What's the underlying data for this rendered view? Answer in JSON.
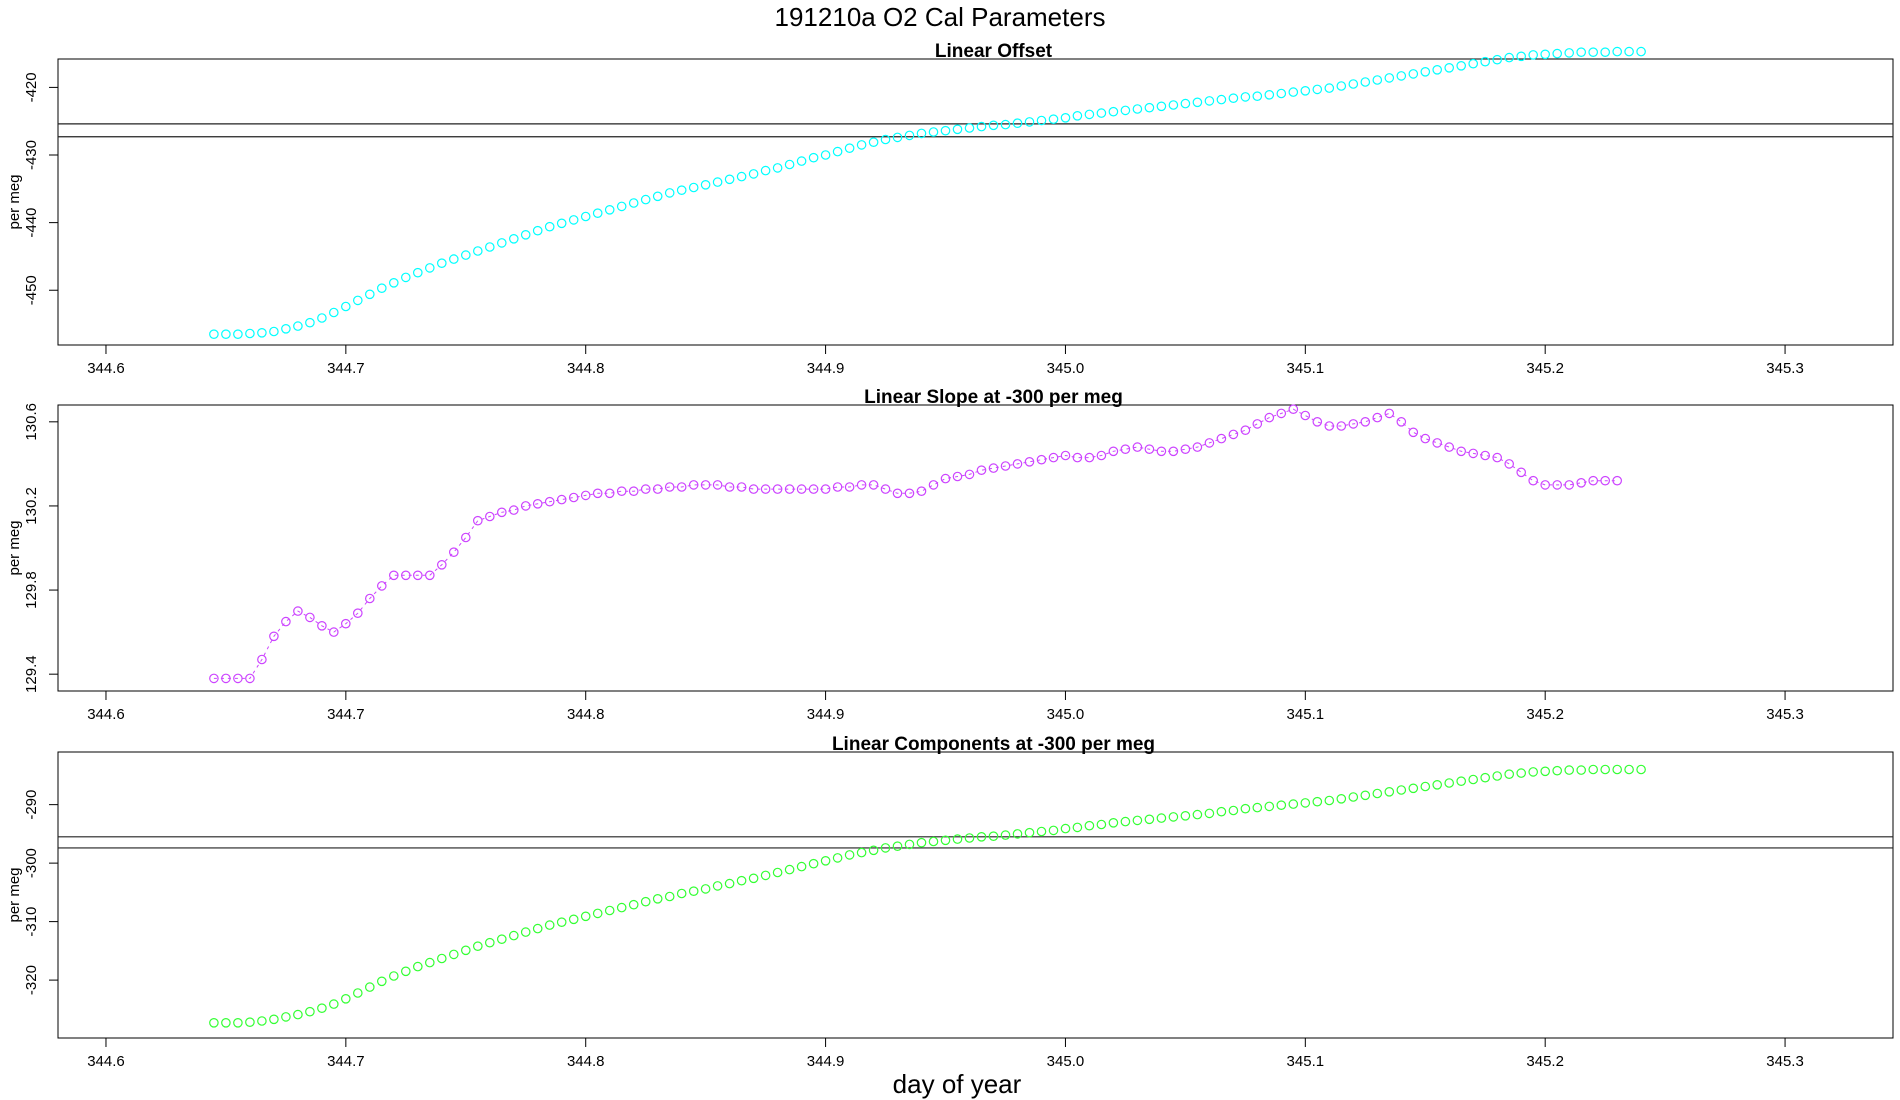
{
  "figure": {
    "title": "191210a   O2 Cal Parameters",
    "xlabel": "day of year"
  },
  "chart_data": [
    {
      "type": "scatter",
      "title": "Linear Offset",
      "xlabel": "",
      "ylabel": "per meg",
      "xlim": [
        344.58,
        345.345
      ],
      "ylim": [
        -458.1,
        -415.8
      ],
      "xticks": [
        "344.6",
        "344.7",
        "344.8",
        "344.9",
        "345.0",
        "345.1",
        "345.2",
        "345.3"
      ],
      "yticks": [
        "-420",
        "-430",
        "-440",
        "-450"
      ],
      "hlines": [
        -425.4,
        -427.3
      ],
      "marker": "open-circle",
      "connected": false,
      "color": "#00ffff",
      "x_start": 344.645,
      "x_step": 0.005,
      "values": [
        -456.5,
        -456.5,
        -456.5,
        -456.4,
        -456.3,
        -456.1,
        -455.7,
        -455.3,
        -454.8,
        -454.1,
        -453.3,
        -452.4,
        -451.5,
        -450.6,
        -449.7,
        -448.9,
        -448.1,
        -447.4,
        -446.7,
        -446.0,
        -445.4,
        -444.8,
        -444.2,
        -443.6,
        -443.0,
        -442.4,
        -441.8,
        -441.2,
        -440.6,
        -440.1,
        -439.6,
        -439.1,
        -438.6,
        -438.1,
        -437.6,
        -437.1,
        -436.6,
        -436.1,
        -435.6,
        -435.2,
        -434.8,
        -434.4,
        -434.0,
        -433.6,
        -433.2,
        -432.8,
        -432.3,
        -431.9,
        -431.4,
        -430.9,
        -430.4,
        -430.0,
        -429.5,
        -429.0,
        -428.5,
        -428.1,
        -427.7,
        -427.4,
        -427.1,
        -426.8,
        -426.6,
        -426.4,
        -426.2,
        -426.0,
        -425.8,
        -425.6,
        -425.5,
        -425.3,
        -425.1,
        -424.9,
        -424.7,
        -424.5,
        -424.2,
        -424.0,
        -423.8,
        -423.6,
        -423.4,
        -423.2,
        -423.0,
        -422.8,
        -422.6,
        -422.4,
        -422.2,
        -422.0,
        -421.8,
        -421.6,
        -421.4,
        -421.3,
        -421.1,
        -420.9,
        -420.7,
        -420.5,
        -420.3,
        -420.1,
        -419.8,
        -419.5,
        -419.2,
        -418.9,
        -418.6,
        -418.3,
        -418.0,
        -417.7,
        -417.4,
        -417.1,
        -416.8,
        -416.5,
        -416.2,
        -415.9,
        -415.6,
        -415.4,
        -415.2,
        -415.1,
        -415.0,
        -414.9,
        -414.8,
        -414.8,
        -414.8,
        -414.7,
        -414.7,
        -414.7
      ]
    },
    {
      "type": "scatter",
      "title": "Linear Slope at -300 per meg",
      "xlabel": "",
      "ylabel": "per meg",
      "xlim": [
        344.58,
        345.345
      ],
      "ylim": [
        129.32,
        130.68
      ],
      "xticks": [
        "344.6",
        "344.7",
        "344.8",
        "344.9",
        "345.0",
        "345.1",
        "345.2",
        "345.3"
      ],
      "yticks": [
        "129.4",
        "129.8",
        "130.2",
        "130.6"
      ],
      "hlines": [],
      "marker": "open-circle",
      "connected": true,
      "color": "#cc44ff",
      "x_start": 344.645,
      "x_step": 0.005,
      "values": [
        129.38,
        129.38,
        129.38,
        129.38,
        129.47,
        129.58,
        129.65,
        129.7,
        129.67,
        129.63,
        129.6,
        129.64,
        129.69,
        129.76,
        129.82,
        129.87,
        129.87,
        129.87,
        129.87,
        129.92,
        129.98,
        130.05,
        130.13,
        130.15,
        130.17,
        130.18,
        130.2,
        130.21,
        130.22,
        130.23,
        130.24,
        130.25,
        130.26,
        130.26,
        130.27,
        130.27,
        130.28,
        130.28,
        130.29,
        130.29,
        130.3,
        130.3,
        130.3,
        130.29,
        130.29,
        130.28,
        130.28,
        130.28,
        130.28,
        130.28,
        130.28,
        130.28,
        130.29,
        130.29,
        130.3,
        130.3,
        130.28,
        130.26,
        130.26,
        130.27,
        130.3,
        130.33,
        130.34,
        130.35,
        130.37,
        130.38,
        130.39,
        130.4,
        130.41,
        130.42,
        130.43,
        130.44,
        130.43,
        130.43,
        130.44,
        130.46,
        130.47,
        130.48,
        130.47,
        130.46,
        130.46,
        130.47,
        130.48,
        130.5,
        130.52,
        130.54,
        130.56,
        130.59,
        130.62,
        130.64,
        130.66,
        130.63,
        130.6,
        130.58,
        130.58,
        130.59,
        130.6,
        130.62,
        130.64,
        130.6,
        130.55,
        130.52,
        130.5,
        130.48,
        130.46,
        130.45,
        130.44,
        130.43,
        130.4,
        130.36,
        130.32,
        130.3,
        130.3,
        130.3,
        130.31,
        130.32,
        130.32,
        130.32
      ]
    },
    {
      "type": "scatter",
      "title": "Linear Components at -300 per meg",
      "xlabel": "day of year",
      "ylabel": "per meg",
      "xlim": [
        344.58,
        345.345
      ],
      "ylim": [
        -329.9,
        -281.0
      ],
      "xticks": [
        "344.6",
        "344.7",
        "344.8",
        "344.9",
        "345.0",
        "345.1",
        "345.2",
        "345.3"
      ],
      "yticks": [
        "-290",
        "-300",
        "-310",
        "-320"
      ],
      "hlines": [
        -295.5,
        -297.4
      ],
      "marker": "open-circle",
      "connected": false,
      "color": "#33ff33",
      "x_start": 344.645,
      "x_step": 0.005,
      "values": [
        -327.3,
        -327.3,
        -327.3,
        -327.2,
        -327.0,
        -326.7,
        -326.3,
        -325.9,
        -325.4,
        -324.8,
        -324.1,
        -323.2,
        -322.2,
        -321.2,
        -320.2,
        -319.3,
        -318.5,
        -317.7,
        -317.0,
        -316.3,
        -315.6,
        -314.9,
        -314.2,
        -313.6,
        -313.0,
        -312.4,
        -311.8,
        -311.2,
        -310.6,
        -310.1,
        -309.6,
        -309.1,
        -308.6,
        -308.1,
        -307.6,
        -307.1,
        -306.6,
        -306.1,
        -305.7,
        -305.2,
        -304.8,
        -304.4,
        -303.9,
        -303.5,
        -303.0,
        -302.6,
        -302.1,
        -301.6,
        -301.1,
        -300.6,
        -300.1,
        -299.6,
        -299.1,
        -298.6,
        -298.2,
        -297.8,
        -297.4,
        -297.1,
        -296.8,
        -296.5,
        -296.3,
        -296.1,
        -295.9,
        -295.7,
        -295.5,
        -295.4,
        -295.2,
        -295.0,
        -294.8,
        -294.6,
        -294.4,
        -294.1,
        -293.9,
        -293.6,
        -293.4,
        -293.1,
        -292.9,
        -292.7,
        -292.5,
        -292.3,
        -292.1,
        -291.9,
        -291.7,
        -291.5,
        -291.2,
        -291.0,
        -290.7,
        -290.5,
        -290.3,
        -290.1,
        -289.9,
        -289.7,
        -289.5,
        -289.3,
        -289.0,
        -288.7,
        -288.4,
        -288.1,
        -287.8,
        -287.5,
        -287.2,
        -286.9,
        -286.6,
        -286.3,
        -286.0,
        -285.7,
        -285.4,
        -285.1,
        -284.8,
        -284.6,
        -284.4,
        -284.3,
        -284.2,
        -284.1,
        -284.1,
        -284.0,
        -284.0,
        -284.0,
        -284.0,
        -284.0
      ]
    }
  ]
}
